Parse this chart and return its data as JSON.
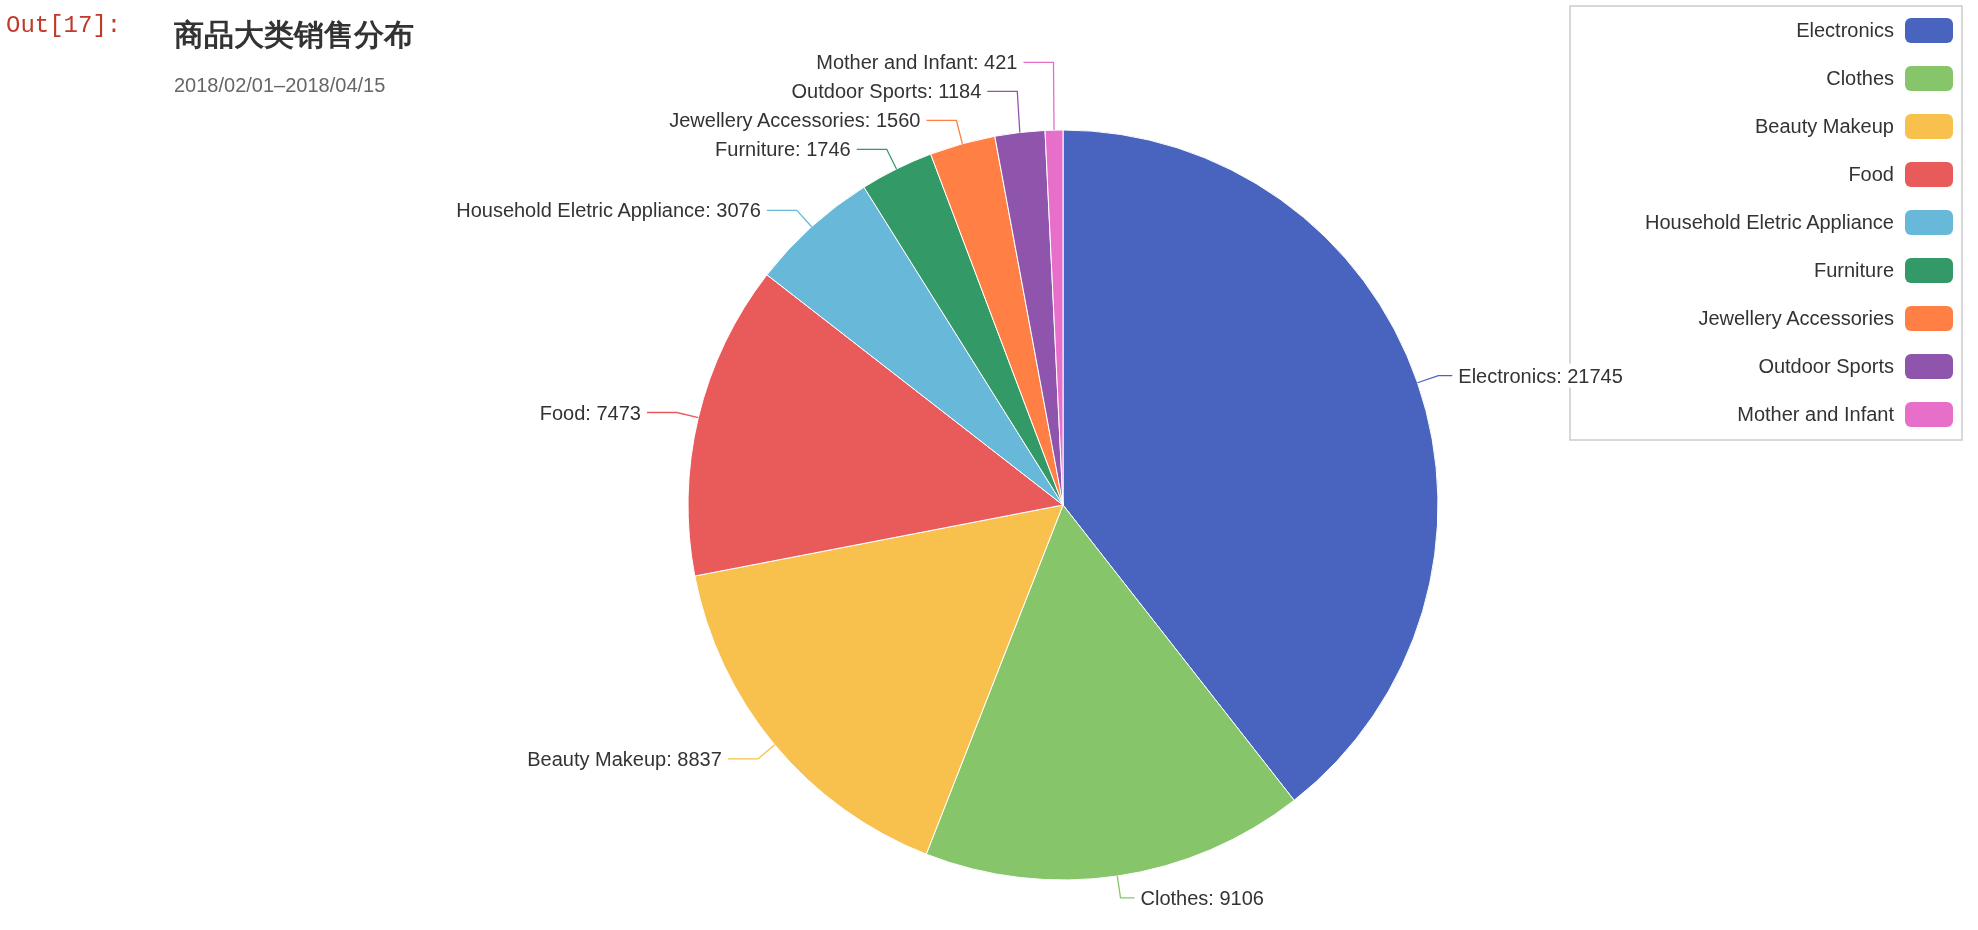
{
  "chart_data": {
    "type": "pie",
    "title": "商品大类销售分布",
    "subtitle": "2018/02/01–2018/04/15",
    "annotations": [
      "Out[17]:"
    ],
    "categories": [
      "Electronics",
      "Clothes",
      "Beauty Makeup",
      "Food",
      "Household Eletric Appliance",
      "Furniture",
      "Jewellery Accessories",
      "Outdoor Sports",
      "Mother and Infant"
    ],
    "values": [
      21745,
      9106,
      8837,
      7473,
      3076,
      1746,
      1560,
      1184,
      421
    ],
    "colors": [
      "#4964bf",
      "#87c56a",
      "#f8c14e",
      "#e95b5b",
      "#68b8d9",
      "#339966",
      "#ff7f44",
      "#8f55ad",
      "#e86fc9"
    ],
    "value_labels": [
      "Electronics: 21745",
      "Clothes: 9106",
      "Beauty Makeup: 8837",
      "Food: 7473",
      "Household Eletric Appliance: 3076",
      "Furniture: 1746",
      "Jewellery Accessories: 1560",
      "Outdoor Sports: 1184",
      "Mother and Infant: 421"
    ],
    "legend": "top right"
  }
}
